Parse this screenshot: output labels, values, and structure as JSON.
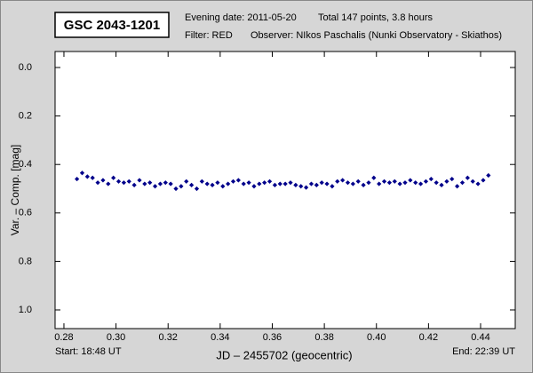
{
  "chart_data": {
    "type": "scatter",
    "title": "GSC 2043-1201",
    "evening_date": "Evening date: 2011-05-20",
    "total": "Total 147 points, 3.8 hours",
    "filter": "Filter: RED",
    "observer": "Observer: NIkos Paschalis (Nunki Observatory - Skiathos)",
    "y_label": "Var. – Comp. [mag]",
    "x_label": "JD – 2455702  (geocentric)",
    "start": "Start: 18:48 UT",
    "end": "End: 22:39 UT",
    "color": "#00008b",
    "y_inverted": true,
    "xlim": [
      0.2766,
      0.4533
    ],
    "ylim": [
      -0.066,
      1.077
    ],
    "xticks": [
      {
        "value": 0.28,
        "label": "0.28"
      },
      {
        "value": 0.3,
        "label": "0.30"
      },
      0.32,
      0.34,
      0.36,
      0.38,
      {
        "value": 0.4,
        "label": "0.40"
      },
      0.42,
      0.44
    ],
    "yticks": [
      {
        "value": 0,
        "label": "0.0"
      },
      0.2,
      0.4,
      0.6,
      0.8,
      {
        "value": 1,
        "label": "1.0"
      }
    ],
    "x": [
      0.285,
      0.287,
      0.289,
      0.291,
      0.293,
      0.295,
      0.297,
      0.299,
      0.301,
      0.303,
      0.305,
      0.307,
      0.309,
      0.311,
      0.313,
      0.315,
      0.317,
      0.319,
      0.321,
      0.323,
      0.325,
      0.327,
      0.329,
      0.331,
      0.333,
      0.335,
      0.337,
      0.339,
      0.341,
      0.343,
      0.345,
      0.347,
      0.349,
      0.351,
      0.353,
      0.355,
      0.357,
      0.359,
      0.361,
      0.363,
      0.365,
      0.367,
      0.369,
      0.371,
      0.373,
      0.375,
      0.377,
      0.379,
      0.381,
      0.383,
      0.385,
      0.387,
      0.389,
      0.391,
      0.393,
      0.395,
      0.397,
      0.399,
      0.401,
      0.403,
      0.405,
      0.407,
      0.409,
      0.411,
      0.413,
      0.415,
      0.417,
      0.419,
      0.421,
      0.423,
      0.425,
      0.427,
      0.429,
      0.431,
      0.433,
      0.435,
      0.437,
      0.439,
      0.441,
      0.443
    ],
    "values": [
      0.46,
      0.435,
      0.45,
      0.455,
      0.475,
      0.465,
      0.48,
      0.455,
      0.47,
      0.475,
      0.47,
      0.485,
      0.465,
      0.48,
      0.475,
      0.49,
      0.48,
      0.475,
      0.48,
      0.5,
      0.49,
      0.47,
      0.485,
      0.5,
      0.47,
      0.48,
      0.485,
      0.475,
      0.49,
      0.48,
      0.47,
      0.465,
      0.48,
      0.475,
      0.49,
      0.48,
      0.475,
      0.47,
      0.485,
      0.48,
      0.48,
      0.475,
      0.485,
      0.49,
      0.495,
      0.48,
      0.485,
      0.475,
      0.48,
      0.49,
      0.47,
      0.465,
      0.475,
      0.48,
      0.47,
      0.485,
      0.475,
      0.455,
      0.48,
      0.47,
      0.475,
      0.47,
      0.48,
      0.475,
      0.465,
      0.475,
      0.48,
      0.47,
      0.46,
      0.475,
      0.485,
      0.47,
      0.46,
      0.49,
      0.475,
      0.455,
      0.47,
      0.48,
      0.465,
      0.445
    ]
  }
}
